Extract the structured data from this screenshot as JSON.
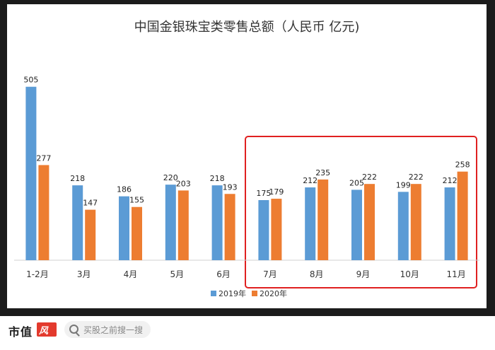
{
  "chart_data": {
    "type": "bar",
    "title": "中国金银珠宝类零售总额（人民币 亿元)",
    "categories": [
      "1-2月",
      "3月",
      "4月",
      "5月",
      "6月",
      "7月",
      "8月",
      "9月",
      "10月",
      "11月"
    ],
    "series": [
      {
        "name": "2019年",
        "color": "#5b9bd5",
        "values": [
          505,
          218,
          186,
          220,
          218,
          175,
          212,
          205,
          199,
          212
        ]
      },
      {
        "name": "2020年",
        "color": "#ed7d31",
        "values": [
          277,
          147,
          155,
          203,
          193,
          179,
          235,
          222,
          222,
          258
        ]
      }
    ],
    "ylim": [
      0,
      560
    ],
    "grid": false,
    "legend_position": "bottom",
    "highlight": {
      "from_category": "7月",
      "to_category": "11月",
      "color": "#e02020"
    }
  },
  "footer": {
    "brand": "市值",
    "brand_logo_text": "风声",
    "search_placeholder": "买股之前搜一搜"
  }
}
